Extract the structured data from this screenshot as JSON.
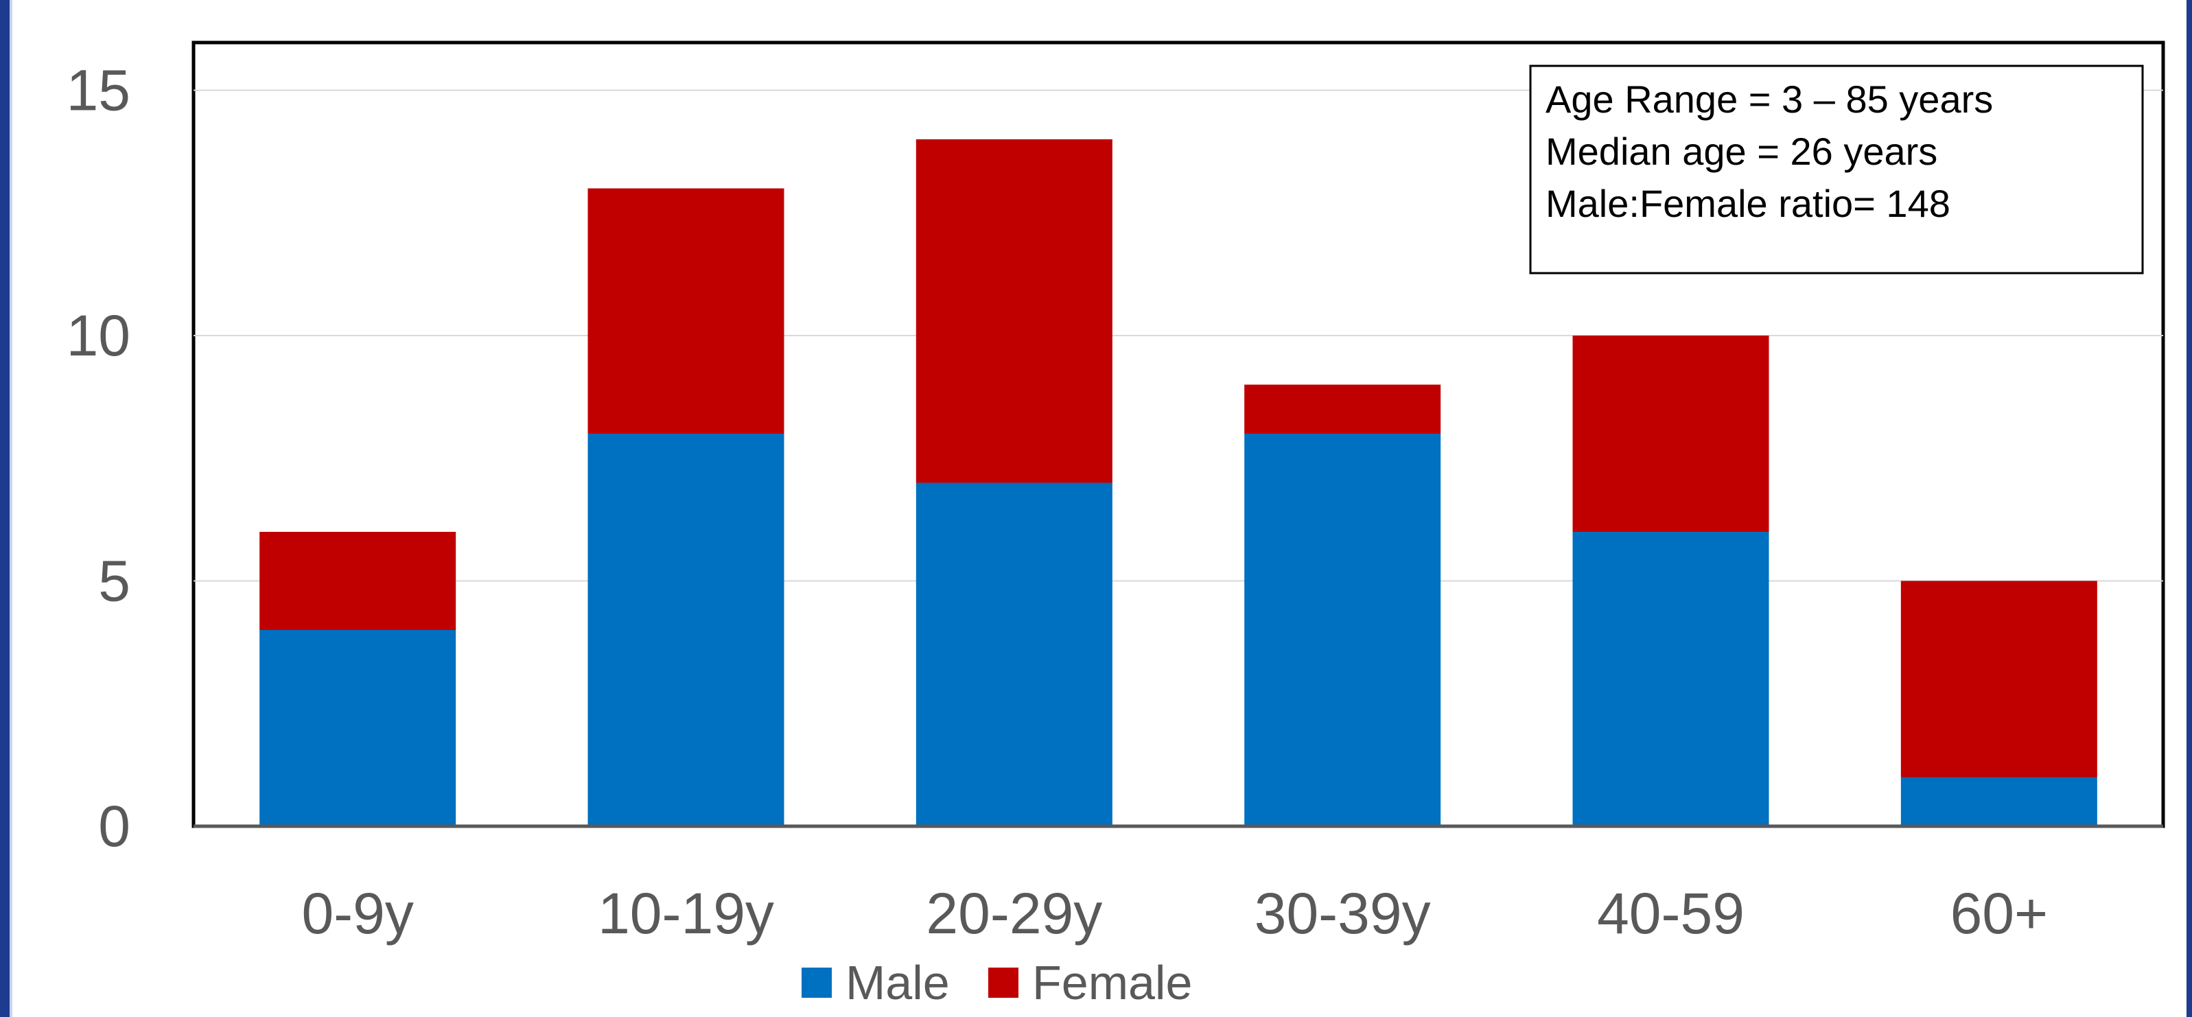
{
  "chart_data": {
    "type": "bar",
    "stacked": true,
    "categories": [
      "0-9y",
      "10-19y",
      "20-29y",
      "30-39y",
      "40-59",
      "60+"
    ],
    "series": [
      {
        "name": "Male",
        "color": "#0070c0",
        "values": [
          4,
          8,
          7,
          8,
          6,
          1
        ]
      },
      {
        "name": "Female",
        "color": "#c00000",
        "values": [
          2,
          5,
          7,
          1,
          4,
          4
        ]
      }
    ],
    "ylim": [
      0,
      16
    ],
    "yticks": [
      0,
      5,
      10,
      15
    ],
    "grid": true,
    "legend": "bottom",
    "annotation": [
      "Age Range = 3 – 85 years",
      "Median age = 26 years",
      "Male:Female ratio= 148"
    ]
  }
}
